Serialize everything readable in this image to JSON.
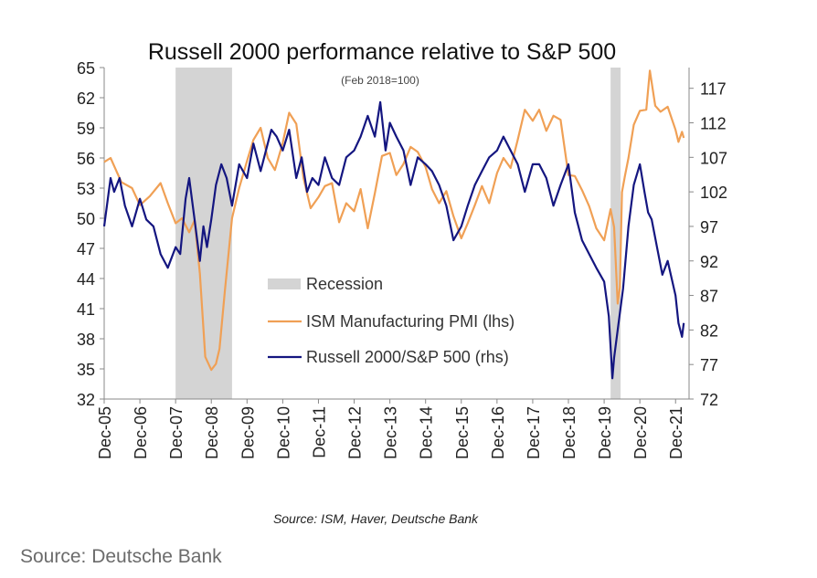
{
  "chart_data": {
    "type": "line",
    "title": "Russell 2000 performance relative to S&P 500",
    "subtitle": "(Feb 2018=100)",
    "source_note": "Source: ISM, Haver, Deutsche Bank",
    "x_start_year": 2005.92,
    "x_end_year": 2022.4,
    "x_tick_labels": [
      "Dec-05",
      "Dec-06",
      "Dec-07",
      "Dec-08",
      "Dec-09",
      "Dec-10",
      "Dec-11",
      "Dec-12",
      "Dec-13",
      "Dec-14",
      "Dec-15",
      "Dec-16",
      "Dec-17",
      "Dec-18",
      "Dec-19",
      "Dec-20",
      "Dec-21"
    ],
    "x_tick_years": [
      2005.92,
      2006.92,
      2007.92,
      2008.92,
      2009.92,
      2010.92,
      2011.92,
      2012.92,
      2013.92,
      2014.92,
      2015.92,
      2016.92,
      2017.92,
      2018.92,
      2019.92,
      2020.92,
      2021.92
    ],
    "y_left": {
      "label": "ISM Manufacturing PMI (lhs)",
      "ylim": [
        32,
        65
      ],
      "ticks": [
        32,
        35,
        38,
        41,
        44,
        47,
        50,
        53,
        56,
        59,
        62,
        65
      ]
    },
    "y_right": {
      "label": "Russell 2000/S&P 500 (rhs)",
      "ylim": [
        72,
        120
      ],
      "ticks": [
        72,
        77,
        82,
        87,
        92,
        97,
        102,
        107,
        112,
        117
      ]
    },
    "recessions": [
      {
        "name": "Recession",
        "start": 2007.92,
        "end": 2009.5
      },
      {
        "name": "Recession",
        "start": 2020.1,
        "end": 2020.38
      }
    ],
    "legend": [
      {
        "label": "Recession",
        "type": "band",
        "color": "#d4d4d4"
      },
      {
        "label": "ISM Manufacturing PMI (lhs)",
        "type": "line",
        "color": "#f0a055"
      },
      {
        "label": "Russell 2000/S&P 500 (rhs)",
        "type": "line",
        "color": "#141680"
      }
    ],
    "series": [
      {
        "name": "ISM Manufacturing PMI (lhs)",
        "axis": "left",
        "color": "#f0a055",
        "x": [
          2005.92,
          2006.1,
          2006.4,
          2006.7,
          2006.92,
          2007.2,
          2007.5,
          2007.7,
          2007.92,
          2008.1,
          2008.3,
          2008.45,
          2008.6,
          2008.75,
          2008.92,
          2009.05,
          2009.15,
          2009.3,
          2009.5,
          2009.7,
          2009.92,
          2010.1,
          2010.3,
          2010.5,
          2010.7,
          2010.92,
          2011.1,
          2011.3,
          2011.5,
          2011.7,
          2011.92,
          2012.1,
          2012.3,
          2012.5,
          2012.7,
          2012.92,
          2013.1,
          2013.3,
          2013.5,
          2013.7,
          2013.92,
          2014.1,
          2014.3,
          2014.5,
          2014.7,
          2014.92,
          2015.1,
          2015.3,
          2015.5,
          2015.7,
          2015.92,
          2016.1,
          2016.3,
          2016.5,
          2016.7,
          2016.92,
          2017.1,
          2017.3,
          2017.5,
          2017.7,
          2017.92,
          2018.1,
          2018.3,
          2018.5,
          2018.7,
          2018.92,
          2019.1,
          2019.3,
          2019.5,
          2019.7,
          2019.92,
          2020.1,
          2020.2,
          2020.3,
          2020.36,
          2020.42,
          2020.5,
          2020.6,
          2020.75,
          2020.92,
          2021.1,
          2021.2,
          2021.35,
          2021.5,
          2021.7,
          2021.92,
          2022.0,
          2022.1,
          2022.15
        ],
        "values": [
          55.6,
          56.0,
          53.6,
          53.0,
          51.3,
          52.2,
          53.5,
          51.5,
          49.5,
          50.0,
          48.6,
          49.8,
          44.5,
          36.2,
          34.9,
          35.5,
          37.0,
          42.8,
          50.0,
          53.0,
          55.7,
          57.8,
          59.0,
          56.0,
          54.8,
          57.5,
          60.5,
          59.4,
          54.0,
          51.0,
          52.1,
          53.2,
          53.5,
          49.6,
          51.5,
          50.7,
          52.9,
          49.0,
          52.5,
          56.2,
          56.5,
          54.3,
          55.4,
          57.1,
          56.6,
          55.1,
          52.9,
          51.5,
          52.7,
          50.2,
          48.0,
          49.5,
          51.3,
          53.2,
          51.5,
          54.5,
          56.0,
          55.0,
          57.8,
          60.8,
          59.7,
          60.8,
          58.7,
          60.2,
          59.8,
          54.3,
          54.2,
          52.8,
          51.2,
          49.0,
          47.8,
          50.9,
          49.1,
          41.5,
          43.1,
          52.6,
          54.2,
          56.0,
          59.3,
          60.7,
          60.8,
          64.7,
          61.2,
          60.6,
          61.1,
          58.8,
          57.6,
          58.6,
          58.0
        ]
      },
      {
        "name": "Russell 2000/S&P 500 (rhs)",
        "axis": "right",
        "color": "#141680",
        "x": [
          2005.92,
          2006.1,
          2006.2,
          2006.35,
          2006.5,
          2006.7,
          2006.92,
          2007.1,
          2007.3,
          2007.5,
          2007.7,
          2007.92,
          2008.05,
          2008.2,
          2008.3,
          2008.45,
          2008.6,
          2008.7,
          2008.8,
          2008.92,
          2009.05,
          2009.2,
          2009.35,
          2009.5,
          2009.7,
          2009.92,
          2010.1,
          2010.3,
          2010.45,
          2010.6,
          2010.75,
          2010.92,
          2011.1,
          2011.3,
          2011.45,
          2011.6,
          2011.75,
          2011.92,
          2012.1,
          2012.3,
          2012.5,
          2012.7,
          2012.92,
          2013.1,
          2013.3,
          2013.5,
          2013.65,
          2013.8,
          2013.92,
          2014.1,
          2014.3,
          2014.5,
          2014.7,
          2014.92,
          2015.1,
          2015.3,
          2015.5,
          2015.7,
          2015.92,
          2016.1,
          2016.3,
          2016.5,
          2016.7,
          2016.92,
          2017.1,
          2017.3,
          2017.5,
          2017.7,
          2017.92,
          2018.1,
          2018.3,
          2018.5,
          2018.7,
          2018.92,
          2019.1,
          2019.3,
          2019.5,
          2019.7,
          2019.92,
          2020.05,
          2020.15,
          2020.2,
          2020.3,
          2020.45,
          2020.6,
          2020.75,
          2020.92,
          2021.05,
          2021.15,
          2021.25,
          2021.4,
          2021.55,
          2021.7,
          2021.92,
          2022.0,
          2022.1,
          2022.15
        ],
        "values": [
          97,
          104,
          102,
          104,
          100,
          97,
          101,
          98,
          97,
          93,
          91,
          94,
          93,
          101,
          104,
          98,
          92,
          97,
          94,
          98,
          103,
          106,
          104,
          100,
          106,
          104,
          109,
          105,
          108,
          111,
          110,
          108,
          111,
          104,
          107,
          102,
          104,
          103,
          107,
          104,
          103,
          107,
          108,
          110,
          113,
          110,
          115,
          108,
          112,
          110,
          108,
          103,
          107,
          106,
          105,
          103,
          100,
          95,
          97,
          100,
          103,
          105,
          107,
          108,
          110,
          108,
          106,
          102,
          106,
          106,
          104,
          100,
          103,
          106,
          99,
          95,
          93,
          91,
          89,
          84,
          75,
          78,
          82,
          88,
          97,
          103,
          106,
          102,
          99,
          98,
          94,
          90,
          92,
          87,
          83,
          81,
          83
        ]
      }
    ]
  },
  "footnote": "Source: Deutsche Bank"
}
